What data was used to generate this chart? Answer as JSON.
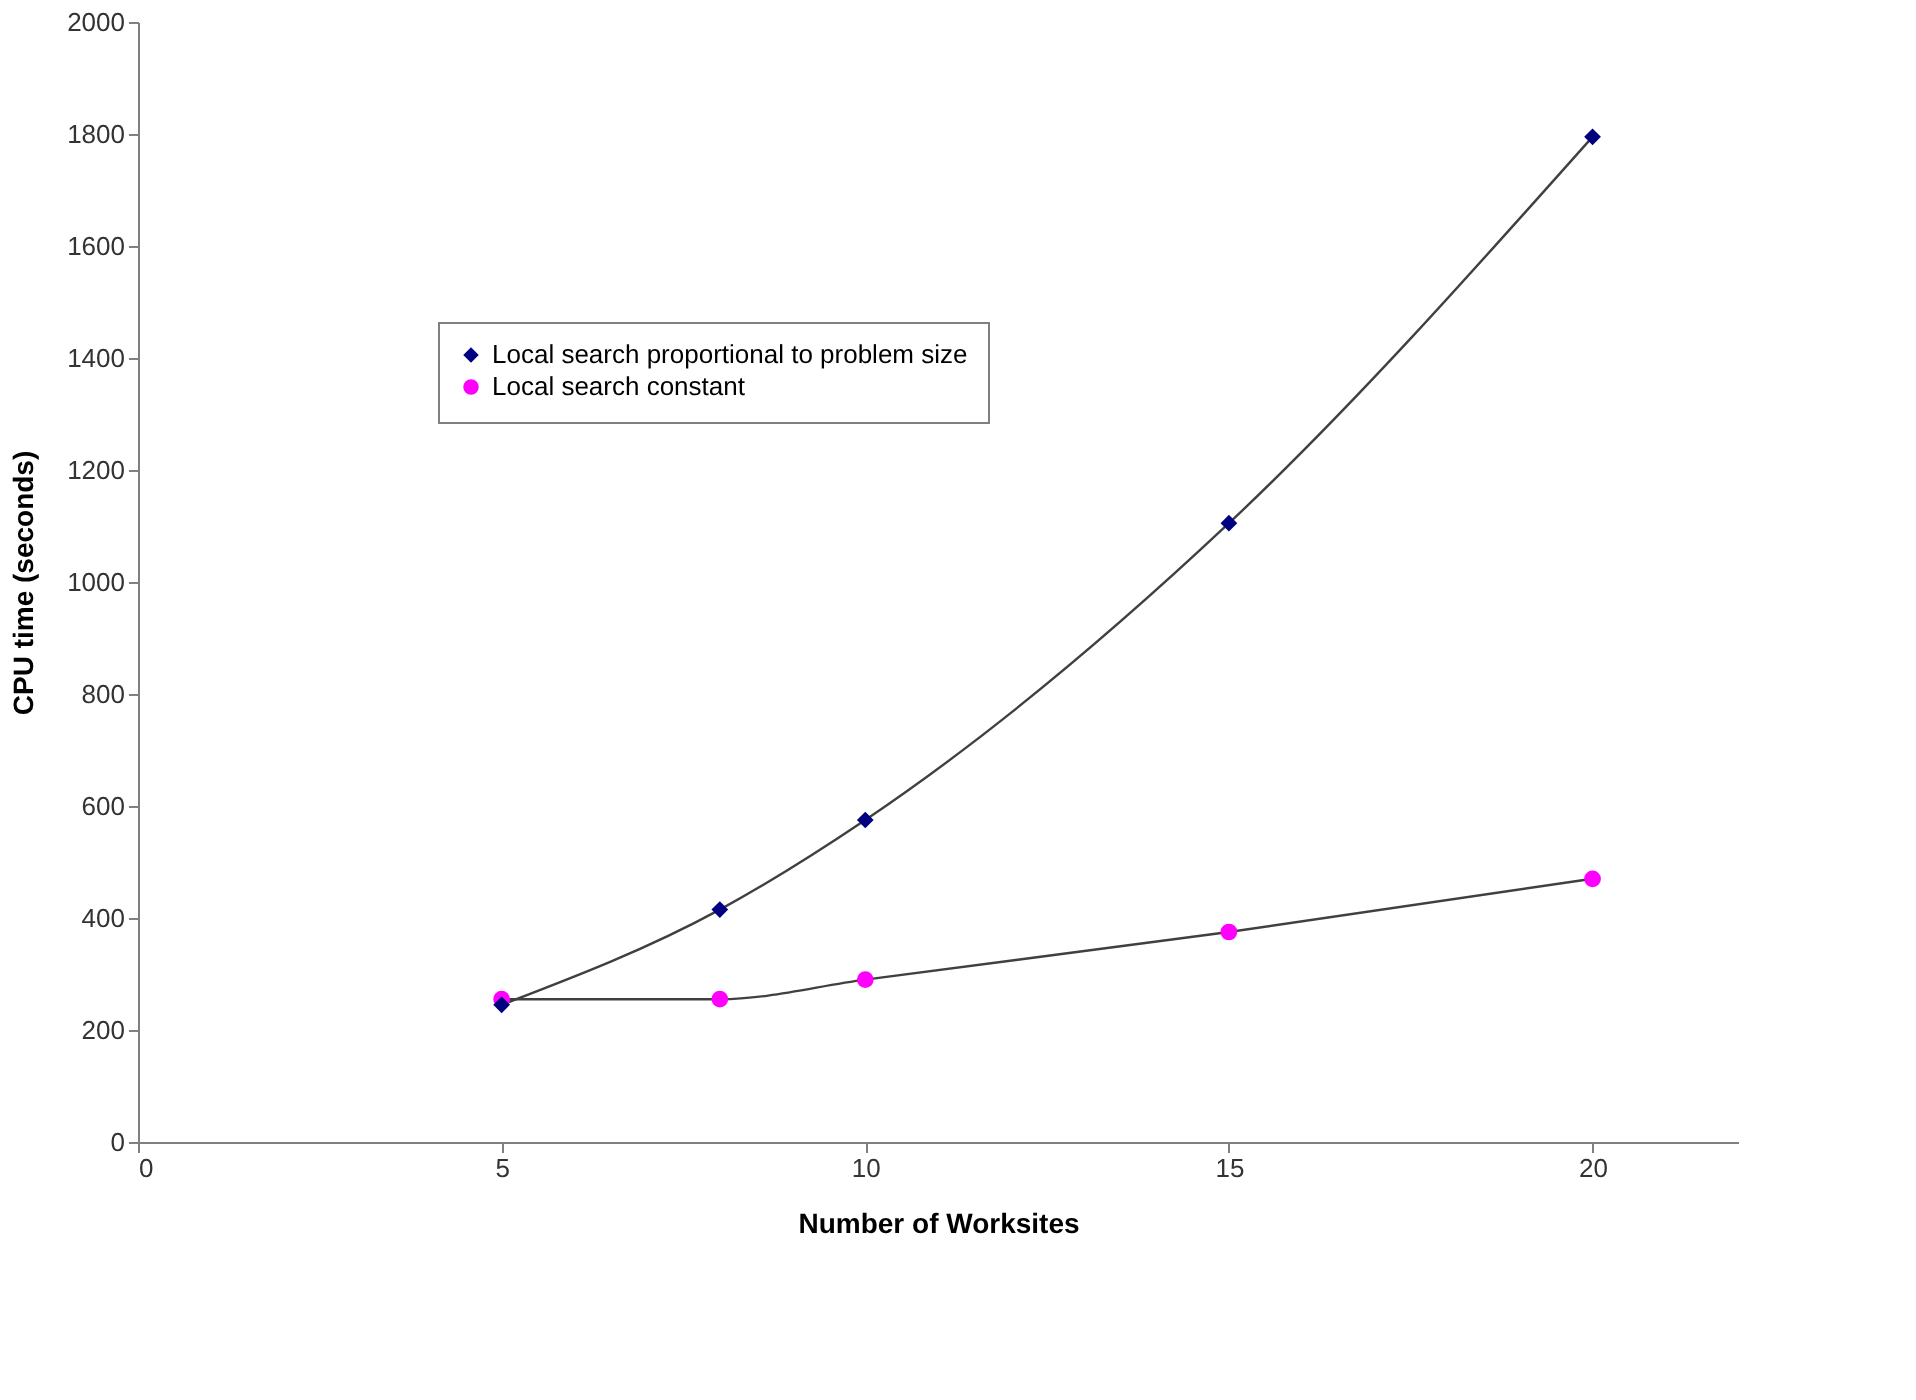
{
  "chart_data": {
    "type": "line",
    "xlabel": "Number of Worksites",
    "ylabel": "CPU time (seconds)",
    "x": [
      5,
      8,
      10,
      15,
      20
    ],
    "series": [
      {
        "name": "Local search proportional to problem size",
        "color": "#000080",
        "marker": "diamond",
        "values": [
          245,
          415,
          575,
          1105,
          1795
        ]
      },
      {
        "name": "Local search constant",
        "color": "#ff00ff",
        "marker": "circle",
        "values": [
          255,
          255,
          290,
          375,
          470
        ]
      }
    ],
    "xlim": [
      0,
      22
    ],
    "xticks": [
      0,
      5,
      10,
      15,
      20
    ],
    "ylim": [
      0,
      2000
    ],
    "yticks": [
      0,
      200,
      400,
      600,
      800,
      1000,
      1200,
      1400,
      1600,
      1800,
      2000
    ],
    "grid": false,
    "legend": "top left",
    "line_style": "solid"
  }
}
